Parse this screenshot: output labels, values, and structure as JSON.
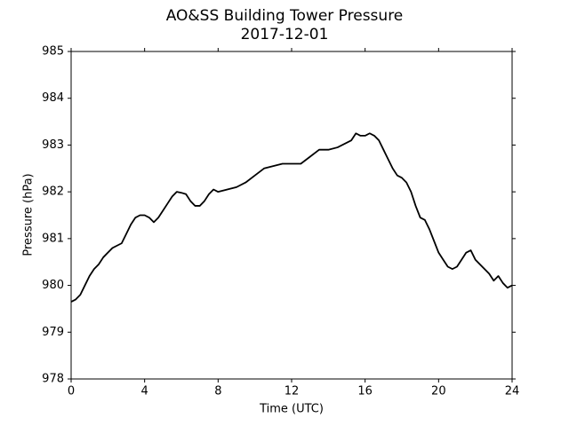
{
  "chart_data": {
    "type": "line",
    "title": "AO&SS Building Tower Pressure",
    "subtitle": "2017-12-01",
    "x_label": "Time (UTC)",
    "y_label": "Pressure (hPa)",
    "x": [
      0,
      0.25,
      0.5,
      0.75,
      1,
      1.25,
      1.5,
      1.75,
      2,
      2.25,
      2.5,
      2.75,
      3,
      3.25,
      3.5,
      3.75,
      4,
      4.25,
      4.5,
      4.75,
      5,
      5.25,
      5.5,
      5.75,
      6,
      6.25,
      6.5,
      6.75,
      7,
      7.25,
      7.5,
      7.75,
      8,
      8.5,
      9,
      9.5,
      10,
      10.5,
      11,
      11.5,
      12,
      12.5,
      13,
      13.5,
      14,
      14.5,
      15,
      15.25,
      15.5,
      15.75,
      16,
      16.25,
      16.5,
      16.75,
      17,
      17.25,
      17.5,
      17.75,
      18,
      18.25,
      18.5,
      18.75,
      19,
      19.25,
      19.5,
      19.75,
      20,
      20.25,
      20.5,
      20.75,
      21,
      21.25,
      21.5,
      21.75,
      22,
      22.25,
      22.5,
      22.75,
      23,
      23.25,
      23.5,
      23.75,
      24
    ],
    "series": [
      {
        "name": "Pressure",
        "color": "#000000",
        "values": [
          979.65,
          979.7,
          979.8,
          980.0,
          980.2,
          980.35,
          980.45,
          980.6,
          980.7,
          980.8,
          980.85,
          980.9,
          981.1,
          981.3,
          981.45,
          981.5,
          981.5,
          981.45,
          981.35,
          981.45,
          981.6,
          981.75,
          981.9,
          982.0,
          981.98,
          981.95,
          981.8,
          981.7,
          981.7,
          981.8,
          981.95,
          982.05,
          982.0,
          982.05,
          982.1,
          982.2,
          982.35,
          982.5,
          982.55,
          982.6,
          982.6,
          982.6,
          982.75,
          982.9,
          982.9,
          982.95,
          983.05,
          983.1,
          983.25,
          983.2,
          983.2,
          983.25,
          983.2,
          983.1,
          982.9,
          982.7,
          982.5,
          982.35,
          982.3,
          982.2,
          982.0,
          981.7,
          981.45,
          981.4,
          981.2,
          980.95,
          980.7,
          980.55,
          980.4,
          980.35,
          980.4,
          980.55,
          980.7,
          980.75,
          980.55,
          980.45,
          980.35,
          980.25,
          980.1,
          980.2,
          980.05,
          979.95,
          980.0
        ]
      }
    ],
    "xlim": [
      0,
      24
    ],
    "xticks": [
      0,
      4,
      8,
      12,
      16,
      20,
      24
    ],
    "ylim": [
      978,
      985
    ],
    "yticks": [
      978,
      979,
      980,
      981,
      982,
      983,
      984,
      985
    ],
    "grid": false
  }
}
